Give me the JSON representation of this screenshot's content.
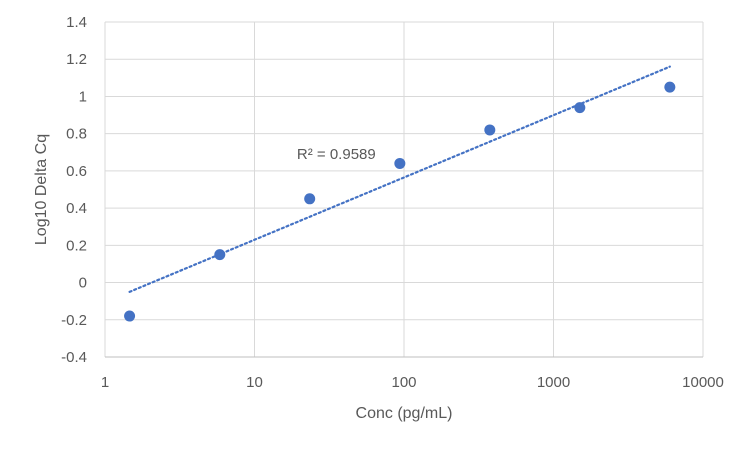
{
  "chart_data": {
    "type": "scatter",
    "title": "",
    "xlabel": "Conc (pg/mL)",
    "ylabel": "Log10 Delta Cq",
    "x_scale": "log",
    "xlim": [
      1,
      10000
    ],
    "ylim": [
      -0.4,
      1.4
    ],
    "x_ticks": [
      1,
      10,
      100,
      1000,
      10000
    ],
    "x_tick_labels": [
      "1",
      "10",
      "100",
      "1000",
      "10000"
    ],
    "y_ticks": [
      -0.4,
      -0.2,
      0,
      0.2,
      0.4,
      0.6,
      0.8,
      1,
      1.2,
      1.4
    ],
    "y_tick_labels": [
      "-0.4",
      "-0.2",
      "0",
      "0.2",
      "0.4",
      "0.6",
      "0.8",
      "1",
      "1.2",
      "1.4"
    ],
    "grid": true,
    "legend": "none",
    "series": [
      {
        "x": [
          1.46,
          5.86,
          23.4,
          93.8,
          375,
          1500,
          6000
        ],
        "y": [
          -0.18,
          0.15,
          0.45,
          0.64,
          0.82,
          0.94,
          1.05
        ],
        "color": "#4472C4"
      }
    ],
    "trendline": {
      "type": "log",
      "style": "dotted",
      "color": "#4472C4",
      "x_start": 1.46,
      "y_start": -0.05,
      "x_end": 6000,
      "y_end": 1.16
    },
    "annotations": [
      {
        "text": "R² = 0.9589",
        "x": 12,
        "y": 0.69
      }
    ]
  }
}
